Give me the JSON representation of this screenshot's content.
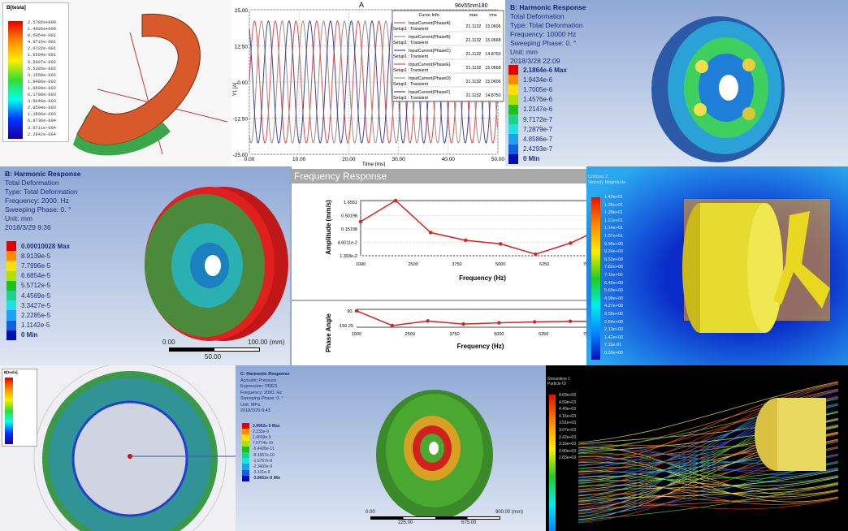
{
  "p1": {
    "title": "B[tesla]",
    "labels": [
      "2.5782e+000",
      "1.4095e+000",
      "8.6054e-001",
      "4.9716e-001",
      "2.0722e-001",
      "1.6594e-001",
      "9.5907e-002",
      "5.5385e-002",
      "3.1559e-002",
      "1.8486e-002",
      "1.0690e-002",
      "6.1700e-003",
      "3.5646e-003",
      "2.0594e-003",
      "1.1896e-003",
      "6.8736e-004",
      "3.9711e-004",
      "2.2942e-004"
    ]
  },
  "p2": {
    "chart_data": {
      "type": "line",
      "title": "A",
      "subtitle": "96v55nm180",
      "xlabel": "Time [ms]",
      "ylabel": "Y1 [A]",
      "xlim": [
        0,
        50
      ],
      "ylim": [
        -25,
        25
      ],
      "xticks": [
        "0.00",
        "10.00",
        "20.00",
        "30.00",
        "40.00",
        "50.00"
      ],
      "yticks": [
        "25.00",
        "12.50",
        "0.00",
        "-12.50",
        "-25.00"
      ],
      "amplitude": 21.1132,
      "period_ms": 4.17,
      "legend_headers": [
        "Curve Info",
        "max",
        "rms"
      ],
      "series": [
        {
          "name": "InputCurrent(PhaseA)",
          "sub": "Setup1 : Transient",
          "max": "21.1132",
          "rms": "15.0606",
          "color": "#e8474a",
          "phase_deg": 0
        },
        {
          "name": "InputCurrent(PhaseB)",
          "sub": "Setup1 : Transient",
          "max": "21.1132",
          "rms": "15.0668",
          "color": "#a08a8a",
          "phase_deg": 120
        },
        {
          "name": "InputCurrent(PhaseC)",
          "sub": "Setup1 : Transient",
          "max": "21.1132",
          "rms": "14.8750",
          "color": "#3a43a8",
          "phase_deg": 240
        },
        {
          "name": "InputCurrent(PhaseE)",
          "sub": "Setup1 : Transient",
          "max": "21.1132",
          "rms": "15.0668",
          "color": "#e8474a",
          "phase_deg": 0
        },
        {
          "name": "InputCurrent(PhaseD)",
          "sub": "Setup1 : Transient",
          "max": "21.1132",
          "rms": "15.0606",
          "color": "#a08a8a",
          "phase_deg": 120
        },
        {
          "name": "InputCurrent(PhaseF)",
          "sub": "Setup1 : Transient",
          "max": "21.1132",
          "rms": "14.8750",
          "color": "#3a43a8",
          "phase_deg": 240
        }
      ]
    }
  },
  "p3": {
    "info": [
      "B: Harmonic Response",
      "Total Deformation",
      "Type: Total Deformation",
      "Frequency: 10000 Hz",
      "Sweeping Phase: 0. °",
      "Unit: mm",
      "2018/3/28 22:09"
    ],
    "legend": [
      "2.1864e-6 Max",
      "1.9434e-6",
      "1.7005e-6",
      "1.4576e-6",
      "1.2147e-6",
      "9.7172e-7",
      "7.2879e-7",
      "4.8586e-7",
      "2.4293e-7",
      "0 Min"
    ]
  },
  "p4": {
    "info": [
      "B: Harmonic Response",
      "Total Deformation",
      "Type: Total Deformation",
      "Frequency: 2000. Hz",
      "Sweeping Phase: 0. °",
      "Unit: mm",
      "2018/3/29 9:36"
    ],
    "legend": [
      "0.00010028 Max",
      "8.9139e-5",
      "7.7996e-5",
      "6.6854e-5",
      "5.5712e-5",
      "4.4569e-5",
      "3.3427e-5",
      "2.2285e-5",
      "1.1142e-5",
      "0 Min"
    ],
    "scale": {
      "start": "0.00",
      "end": "100.00 (mm)",
      "mid": "50.00"
    }
  },
  "p5": {
    "header": "Frequency Response",
    "chart_data": [
      {
        "type": "line",
        "xlabel": "Frequency (Hz)",
        "ylabel": "Amplitude (mm/s)",
        "yscale": "log",
        "xticks": [
          1000,
          2500,
          3750,
          5000,
          6250,
          7500
        ],
        "ytick_labels": [
          "1.6551",
          "0.50198",
          "0.15198",
          "4.6011e-2",
          "1.393e-2"
        ],
        "x": [
          1000,
          2000,
          3000,
          4000,
          5000,
          6000,
          7000,
          7500
        ],
        "y": [
          0.29,
          1.9,
          0.11,
          0.055,
          0.04,
          0.016,
          0.043,
          0.09
        ]
      },
      {
        "type": "line",
        "xlabel": "Frequency (Hz)",
        "ylabel": "Phase Angle",
        "xticks": [
          1000,
          2500,
          3750,
          5000,
          6250,
          7500
        ],
        "ytick_labels": [
          "90.",
          "-150.25"
        ],
        "x": [
          1000,
          2000,
          3000,
          4000,
          5000,
          6000,
          7000,
          7500
        ],
        "y": [
          92,
          -150,
          -75,
          -125,
          -105,
          -90,
          -80,
          -80
        ]
      }
    ]
  },
  "p6": {
    "title": [
      "Contour 2",
      "Velocity Magnitude"
    ],
    "legend": [
      "1.42e+01",
      "1.35e+01",
      "1.28e+01",
      "1.21e+01",
      "1.14e+01",
      "1.07e+01",
      "9.96e+00",
      "9.24e+00",
      "8.53e+00",
      "7.82e+00",
      "7.11e+00",
      "6.40e+00",
      "5.69e+00",
      "4.98e+00",
      "4.27e+00",
      "3.56e+00",
      "2.84e+00",
      "2.13e+00",
      "1.42e+00",
      "7.11e-01",
      "0.00e+00"
    ]
  },
  "p7": {
    "title": "B[tesla]"
  },
  "p8": {
    "info": [
      "C: Harmonic Response",
      "Acoustic Pressure",
      "Expression: PRES",
      "Frequency: 2000. Hz",
      "Sweeping Phase: 0. °",
      "Unit: MPa",
      "2018/3/29 8:43"
    ],
    "legend": [
      "2.9962e-9 Max",
      "2.233e-9",
      "1.4699e-9",
      "7.0774e-10",
      "-5.4428e-11",
      "-8.1557e-10",
      "-1.5767e-9",
      "-2.3409e-9",
      "-3.101e-9",
      "-3.8652e-9 Min"
    ],
    "scale": {
      "start": "0.00",
      "end": "900.00 (mm)",
      "a": "225.00",
      "b": "675.00"
    }
  },
  "p9": {
    "title": [
      "Streamline 1",
      "Particle ID"
    ],
    "legend": [
      "4.69e+03",
      "4.59e+03",
      "4.40e+03",
      "4.16e+03",
      "3.51e+03",
      "3.07e+03",
      "2.42e+03",
      "3.16e+03",
      "2.90e+03",
      "2.83e+03"
    ]
  }
}
